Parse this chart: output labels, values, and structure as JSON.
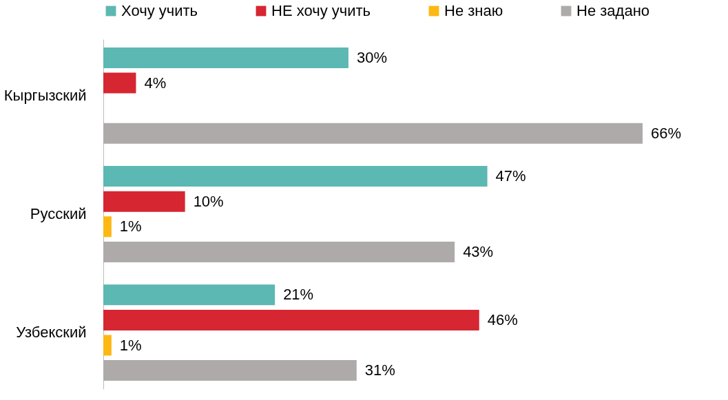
{
  "chart_data": {
    "type": "bar",
    "orientation": "horizontal",
    "categories": [
      "Кыргызский",
      "Русский",
      "Узбекский"
    ],
    "series": [
      {
        "name": "Хочу учить",
        "color": "#5cb8b2",
        "values": [
          30,
          47,
          21
        ],
        "value_labels": [
          "30%",
          "47%",
          "21%"
        ]
      },
      {
        "name": "НЕ хочу учить",
        "color": "#d62631",
        "values": [
          4,
          10,
          46
        ],
        "value_labels": [
          "4%",
          "10%",
          "46%"
        ]
      },
      {
        "name": "Не знаю",
        "color": "#fdb813",
        "values": [
          null,
          1,
          1
        ],
        "value_labels": [
          null,
          "1%",
          "1%"
        ]
      },
      {
        "name": "Не задано",
        "color": "#aeaaaa",
        "values": [
          66,
          43,
          31
        ],
        "value_labels": [
          "66%",
          "43%",
          "31%"
        ]
      }
    ],
    "legend": "top",
    "grid": false
  }
}
